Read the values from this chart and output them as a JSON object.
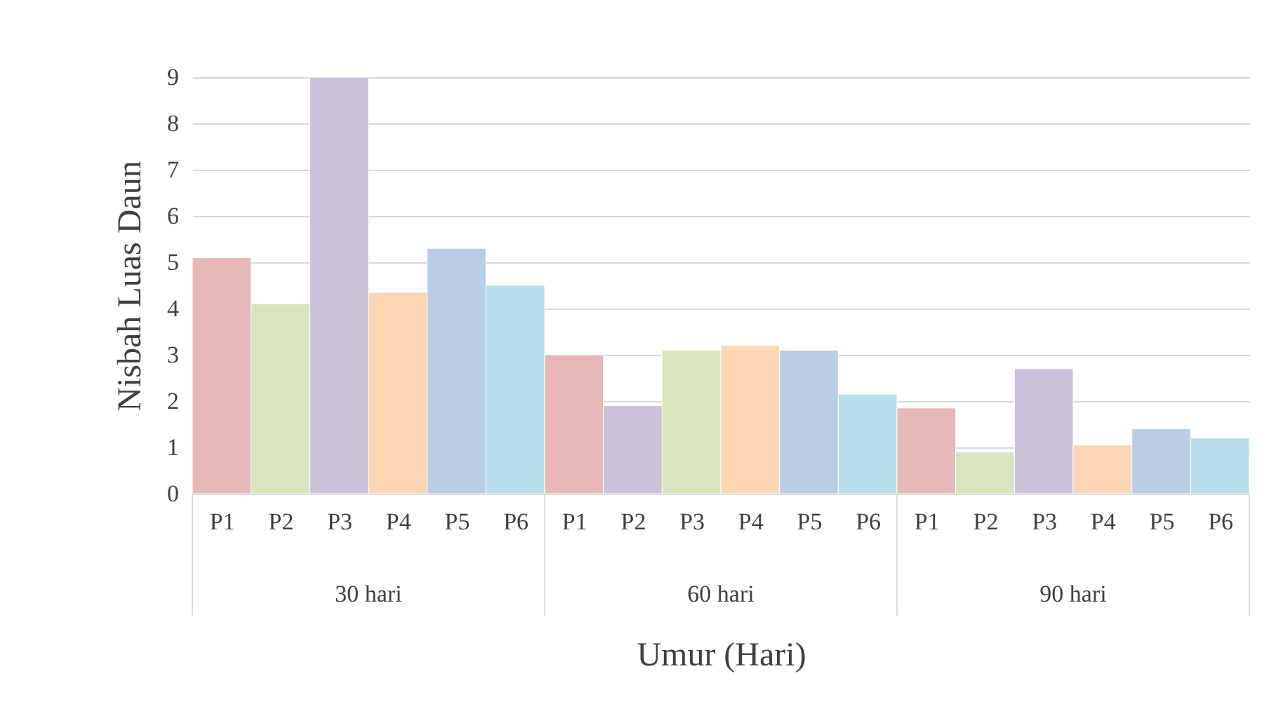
{
  "chart_data": {
    "type": "bar",
    "xlabel": "Umur (Hari)",
    "ylabel": "Nisbah Luas Daun",
    "categories": [
      "P1",
      "P2",
      "P3",
      "P4",
      "P5",
      "P6",
      "P1",
      "P2",
      "P3",
      "P4",
      "P5",
      "P6",
      "P1",
      "P2",
      "P3",
      "P4",
      "P5",
      "P6"
    ],
    "values": [
      5.1,
      4.1,
      9.0,
      4.35,
      5.3,
      4.5,
      3.0,
      1.9,
      3.1,
      3.2,
      3.1,
      2.15,
      1.85,
      0.9,
      2.7,
      1.05,
      1.4,
      1.2
    ],
    "colors": [
      "#e6b8b7",
      "#d7e4bd",
      "#ccc1da",
      "#fcd5b5",
      "#b9cde5",
      "#b7dee8",
      "#e6b8b7",
      "#ccc1da",
      "#d7e4bd",
      "#fcd5b5",
      "#b9cde5",
      "#b7dee8",
      "#e6b8b7",
      "#d7e4bd",
      "#ccc1da",
      "#fcd5b5",
      "#b9cde5",
      "#b7dee8"
    ],
    "annotations": [
      "30 hari",
      "60 hari",
      "90 hari"
    ],
    "ylim": [
      0,
      9
    ],
    "yticks": [
      0,
      1,
      2,
      3,
      4,
      5,
      6,
      7,
      8,
      9
    ],
    "grid": "y"
  }
}
